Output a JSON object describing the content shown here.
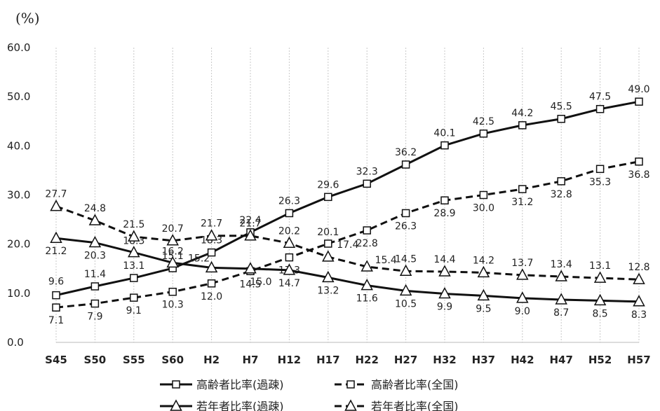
{
  "chart_data": {
    "type": "line",
    "unit_label": "(%)",
    "categories": [
      "S45",
      "S50",
      "S55",
      "S60",
      "H2",
      "H7",
      "H12",
      "H17",
      "H22",
      "H27",
      "H32",
      "H37",
      "H42",
      "H47",
      "H52",
      "H57"
    ],
    "ylim": [
      0,
      60
    ],
    "yticks": [
      "0.0",
      "10.0",
      "20.0",
      "30.0",
      "40.0",
      "50.0",
      "60.0"
    ],
    "grid": "vertical",
    "legend_position": "bottom",
    "series": [
      {
        "name": "高齢者比率(過疎)",
        "line": "solid",
        "marker": "square",
        "values": [
          9.6,
          11.4,
          13.1,
          15.1,
          18.3,
          22.4,
          26.3,
          29.6,
          32.3,
          36.2,
          40.1,
          42.5,
          44.2,
          45.5,
          47.5,
          49.0
        ],
        "labels": [
          "9.6",
          "11.4",
          "13.1",
          "15.1",
          "18.3",
          "22.4",
          "26.3",
          "29.6",
          "32.3",
          "36.2",
          "40.1",
          "42.5",
          "44.2",
          "45.5",
          "47.5",
          "49.0"
        ]
      },
      {
        "name": "高齢者比率(全国)",
        "line": "dashed",
        "marker": "square",
        "values": [
          7.1,
          7.9,
          9.1,
          10.3,
          12.0,
          14.5,
          17.3,
          20.1,
          22.8,
          26.3,
          28.9,
          30.0,
          31.2,
          32.8,
          35.3,
          36.8
        ],
        "labels": [
          "7.1",
          "7.9",
          "9.1",
          "10.3",
          "12.0",
          "14.5",
          "17.3",
          "20.1",
          "22.8",
          "26.3",
          "28.9",
          "30.0",
          "31.2",
          "32.8",
          "35.3",
          "36.8"
        ]
      },
      {
        "name": "若年者比率(過疎)",
        "line": "solid",
        "marker": "triangle",
        "values": [
          21.2,
          20.3,
          18.3,
          16.2,
          15.2,
          15.0,
          14.7,
          13.2,
          11.6,
          10.5,
          9.9,
          9.5,
          9.0,
          8.7,
          8.5,
          8.3
        ],
        "labels": [
          "21.2",
          "20.3",
          "18.3",
          "16.2",
          "15.2",
          "15.0",
          "14.7",
          "13.2",
          "11.6",
          "10.5",
          "9.9",
          "9.5",
          "9.0",
          "8.7",
          "8.5",
          "8.3"
        ]
      },
      {
        "name": "若年者比率(全国)",
        "line": "dashed",
        "marker": "triangle",
        "values": [
          27.7,
          24.8,
          21.5,
          20.7,
          21.7,
          21.7,
          20.2,
          17.4,
          15.4,
          14.5,
          14.4,
          14.2,
          13.7,
          13.4,
          13.1,
          12.8
        ],
        "labels": [
          "27.7",
          "24.8",
          "21.5",
          "20.7",
          "21.7",
          "21.7",
          "20.2",
          "17.4",
          "15.4",
          "14.5",
          "14.4",
          "14.2",
          "13.7",
          "13.4",
          "13.1",
          "12.8"
        ]
      }
    ]
  }
}
